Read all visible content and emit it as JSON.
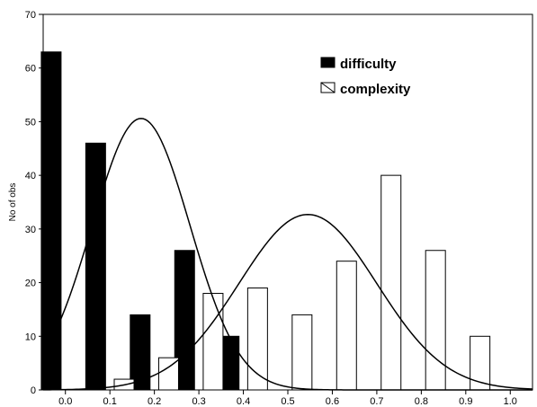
{
  "chart_data": {
    "type": "bar",
    "title": "",
    "xlabel": "",
    "ylabel": "No of obs",
    "xlim": [
      -0.05,
      1.05
    ],
    "ylim": [
      0,
      70
    ],
    "x_ticks": [
      "0.0",
      "0.1",
      "0.2",
      "0.3",
      "0.4",
      "0.5",
      "0.6",
      "0.7",
      "0.8",
      "0.9",
      "1.0"
    ],
    "y_ticks": [
      "0",
      "10",
      "20",
      "30",
      "40",
      "50",
      "60",
      "70"
    ],
    "grid": false,
    "legend_position": "top-right",
    "series": [
      {
        "name": "difficulty",
        "fill": "#000000",
        "bars": [
          {
            "x": 0.0,
            "value": 63
          },
          {
            "x": 0.1,
            "value": 46
          },
          {
            "x": 0.2,
            "value": 14
          },
          {
            "x": 0.3,
            "value": 26
          },
          {
            "x": 0.4,
            "value": 10
          }
        ],
        "fit_curve": {
          "mean": 0.17,
          "sd": 0.11,
          "peak": 50.6
        }
      },
      {
        "name": "complexity",
        "fill": "#ffffff",
        "bars": [
          {
            "x": 0.1,
            "value": 2
          },
          {
            "x": 0.2,
            "value": 6
          },
          {
            "x": 0.3,
            "value": 18
          },
          {
            "x": 0.4,
            "value": 19
          },
          {
            "x": 0.5,
            "value": 14
          },
          {
            "x": 0.6,
            "value": 24
          },
          {
            "x": 0.7,
            "value": 40
          },
          {
            "x": 0.8,
            "value": 26
          },
          {
            "x": 0.9,
            "value": 10
          },
          {
            "x": 1.0,
            "value": 0
          }
        ],
        "fit_curve": {
          "mean": 0.545,
          "sd": 0.155,
          "peak": 32.7
        }
      }
    ]
  }
}
